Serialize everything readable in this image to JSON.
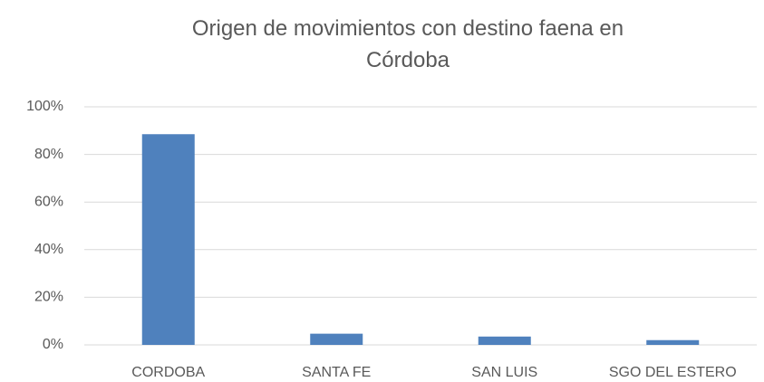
{
  "chart_data": {
    "type": "bar",
    "title": "Origen de movimientos con destino faena en Córdoba",
    "categories": [
      "CORDOBA",
      "SANTA FE",
      "SAN LUIS",
      "SGO DEL ESTERO"
    ],
    "values": [
      88.5,
      4.7,
      3.5,
      2.0
    ],
    "color": "#4f81bd",
    "ylim": [
      0,
      100
    ],
    "yticks": [
      {
        "value": 0,
        "label": "0%"
      },
      {
        "value": 20,
        "label": "20%"
      },
      {
        "value": 40,
        "label": "40%"
      },
      {
        "value": 60,
        "label": "60%"
      },
      {
        "value": 80,
        "label": "80%"
      },
      {
        "value": 100,
        "label": "100%"
      }
    ],
    "grid": true
  }
}
